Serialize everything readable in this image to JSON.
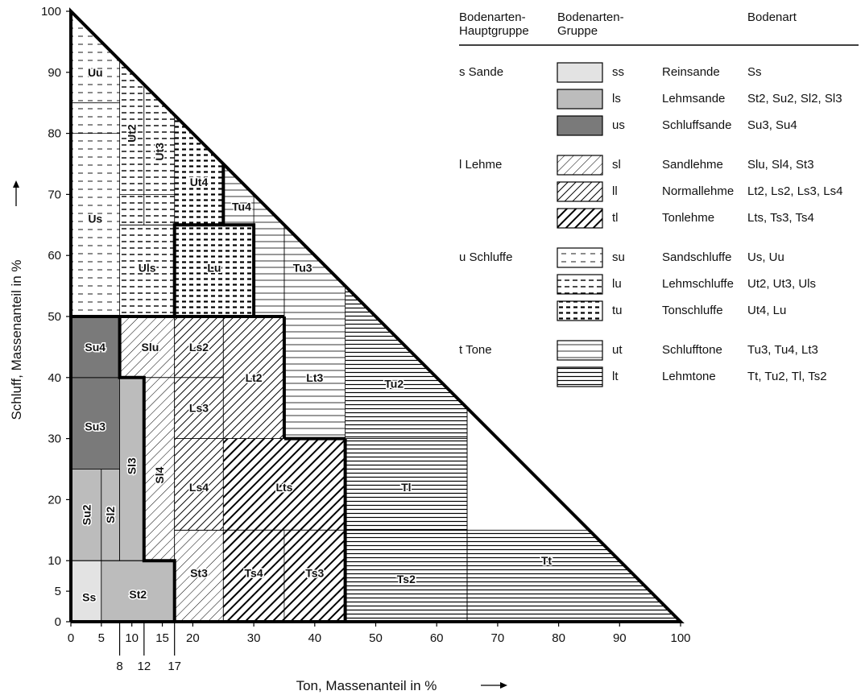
{
  "axes": {
    "x_title": "Ton, Massenanteil in %",
    "y_title": "Schluff, Massenanteil in %",
    "x_ticks": [
      "0",
      "5",
      "10",
      "15",
      "20",
      "30",
      "40",
      "50",
      "60",
      "70",
      "80",
      "90",
      "100"
    ],
    "x_extra_ticks": [
      "8",
      "12",
      "17"
    ],
    "y_ticks": [
      "0",
      "5",
      "10",
      "20",
      "30",
      "40",
      "50",
      "60",
      "70",
      "80",
      "90",
      "100"
    ]
  },
  "legend": {
    "headers": {
      "main_group": "Bodenarten-\nHauptgruppe",
      "group": "Bodenarten-\nGruppe",
      "soil": "Bodenart"
    },
    "sections": [
      {
        "main": "s  Sande",
        "rows": [
          {
            "pattern": "ss",
            "code": "ss",
            "name": "Reinsande",
            "soils": "Ss"
          },
          {
            "pattern": "ls",
            "code": "ls",
            "name": "Lehmsande",
            "soils": "St2, Su2, Sl2, Sl3"
          },
          {
            "pattern": "us",
            "code": "us",
            "name": "Schluffsande",
            "soils": "Su3, Su4"
          }
        ]
      },
      {
        "main": "l  Lehme",
        "rows": [
          {
            "pattern": "sl",
            "code": "sl",
            "name": "Sandlehme",
            "soils": "Slu, Sl4, St3"
          },
          {
            "pattern": "ll",
            "code": "ll",
            "name": "Normallehme",
            "soils": "Lt2, Ls2, Ls3, Ls4"
          },
          {
            "pattern": "tl",
            "code": "tl",
            "name": "Tonlehme",
            "soils": "Lts, Ts3, Ts4"
          }
        ]
      },
      {
        "main": "u  Schluffe",
        "rows": [
          {
            "pattern": "su",
            "code": "su",
            "name": "Sandschluffe",
            "soils": "Us, Uu"
          },
          {
            "pattern": "lu",
            "code": "lu",
            "name": "Lehmschluffe",
            "soils": "Ut2, Ut3, Uls"
          },
          {
            "pattern": "tu",
            "code": "tu",
            "name": "Tonschluffe",
            "soils": "Ut4, Lu"
          }
        ]
      },
      {
        "main": "t  Tone",
        "rows": [
          {
            "pattern": "ut",
            "code": "ut",
            "name": "Schlufftone",
            "soils": "Tu3, Tu4, Lt3"
          },
          {
            "pattern": "lt",
            "code": "lt",
            "name": "Lehmtone",
            "soils": "Tt, Tu2, Tl, Ts2"
          }
        ]
      }
    ]
  },
  "classes": [
    {
      "label": "Ss",
      "group": "ss",
      "poly": [
        [
          0,
          0
        ],
        [
          5,
          0
        ],
        [
          5,
          10
        ],
        [
          0,
          10
        ]
      ],
      "lab": [
        3,
        4
      ]
    },
    {
      "label": "St2",
      "group": "ls",
      "poly": [
        [
          5,
          0
        ],
        [
          17,
          0
        ],
        [
          17,
          10
        ],
        [
          5,
          10
        ]
      ],
      "lab": [
        11,
        4.5
      ]
    },
    {
      "label": "Su2",
      "group": "ls",
      "poly": [
        [
          0,
          10
        ],
        [
          5,
          10
        ],
        [
          5,
          25
        ],
        [
          0,
          25
        ]
      ],
      "lab": [
        2.6,
        17.5
      ],
      "rot": true
    },
    {
      "label": "Sl2",
      "group": "ls",
      "poly": [
        [
          5,
          10
        ],
        [
          8,
          10
        ],
        [
          8,
          25
        ],
        [
          5,
          25
        ]
      ],
      "lab": [
        6.5,
        17.5
      ],
      "rot": true
    },
    {
      "label": "Sl3",
      "group": "ls",
      "poly": [
        [
          8,
          10
        ],
        [
          12,
          10
        ],
        [
          12,
          40
        ],
        [
          8,
          40
        ],
        [
          8,
          25
        ]
      ],
      "lab": [
        10,
        25.5
      ],
      "rot": true
    },
    {
      "label": "Su3",
      "group": "us",
      "poly": [
        [
          0,
          25
        ],
        [
          8,
          25
        ],
        [
          8,
          40
        ],
        [
          0,
          40
        ]
      ],
      "lab": [
        4,
        32
      ]
    },
    {
      "label": "Su4",
      "group": "us",
      "poly": [
        [
          0,
          40
        ],
        [
          8,
          40
        ],
        [
          8,
          50
        ],
        [
          0,
          50
        ]
      ],
      "lab": [
        4,
        45
      ]
    },
    {
      "label": "Slu",
      "group": "sl",
      "poly": [
        [
          8,
          40
        ],
        [
          8,
          50
        ],
        [
          17,
          50
        ],
        [
          17,
          40
        ]
      ],
      "lab": [
        13,
        45
      ]
    },
    {
      "label": "Sl4",
      "group": "sl",
      "poly": [
        [
          12,
          10
        ],
        [
          17,
          10
        ],
        [
          17,
          40
        ],
        [
          12,
          40
        ]
      ],
      "lab": [
        14.5,
        24
      ],
      "rot": true
    },
    {
      "label": "St3",
      "group": "sl",
      "poly": [
        [
          17,
          0
        ],
        [
          25,
          0
        ],
        [
          25,
          15
        ],
        [
          17,
          15
        ]
      ],
      "lab": [
        21,
        8
      ]
    },
    {
      "label": "Ls2",
      "group": "ll",
      "poly": [
        [
          17,
          40
        ],
        [
          25,
          40
        ],
        [
          25,
          50
        ],
        [
          17,
          50
        ]
      ],
      "lab": [
        21,
        45
      ]
    },
    {
      "label": "Ls3",
      "group": "ll",
      "poly": [
        [
          17,
          30
        ],
        [
          25,
          30
        ],
        [
          25,
          40
        ],
        [
          17,
          40
        ]
      ],
      "lab": [
        21,
        35
      ]
    },
    {
      "label": "Ls4",
      "group": "ll",
      "poly": [
        [
          17,
          15
        ],
        [
          25,
          15
        ],
        [
          25,
          30
        ],
        [
          17,
          30
        ]
      ],
      "lab": [
        21,
        22
      ]
    },
    {
      "label": "Lt2",
      "group": "ll",
      "poly": [
        [
          25,
          30
        ],
        [
          35,
          30
        ],
        [
          35,
          50
        ],
        [
          25,
          50
        ]
      ],
      "lab": [
        30,
        40
      ]
    },
    {
      "label": "Lts",
      "group": "tl",
      "poly": [
        [
          25,
          15
        ],
        [
          45,
          15
        ],
        [
          45,
          30
        ],
        [
          25,
          30
        ]
      ],
      "lab": [
        35,
        22
      ]
    },
    {
      "label": "Ts4",
      "group": "tl",
      "poly": [
        [
          25,
          0
        ],
        [
          35,
          0
        ],
        [
          35,
          15
        ],
        [
          25,
          15
        ]
      ],
      "lab": [
        30,
        8
      ]
    },
    {
      "label": "Ts3",
      "group": "tl",
      "poly": [
        [
          35,
          0
        ],
        [
          45,
          0
        ],
        [
          45,
          15
        ],
        [
          35,
          15
        ]
      ],
      "lab": [
        40,
        8
      ]
    },
    {
      "label": "Ts2",
      "group": "lt",
      "poly": [
        [
          45,
          0
        ],
        [
          65,
          0
        ],
        [
          65,
          15
        ],
        [
          45,
          15
        ]
      ],
      "lab": [
        55,
        7
      ]
    },
    {
      "label": "Tt",
      "group": "lt",
      "poly": [
        [
          65,
          0
        ],
        [
          100,
          0
        ],
        [
          85,
          15
        ],
        [
          65,
          15
        ]
      ],
      "lab": [
        78,
        10
      ]
    },
    {
      "label": "Tl",
      "group": "lt",
      "poly": [
        [
          45,
          15
        ],
        [
          65,
          15
        ],
        [
          65,
          30
        ],
        [
          45,
          30
        ]
      ],
      "lab": [
        55,
        22
      ]
    },
    {
      "label": "Tu2",
      "group": "lt",
      "poly": [
        [
          45,
          30
        ],
        [
          65,
          30
        ],
        [
          65,
          35
        ],
        [
          45,
          55
        ]
      ],
      "lab": [
        53,
        39
      ]
    },
    {
      "label": "Lt3",
      "group": "ut",
      "poly": [
        [
          35,
          30
        ],
        [
          45,
          30
        ],
        [
          45,
          55
        ],
        [
          35,
          65
        ],
        [
          35,
          50
        ]
      ],
      "lab": [
        40,
        40
      ]
    },
    {
      "label": "Tu3",
      "group": "ut",
      "poly": [
        [
          30,
          50
        ],
        [
          35,
          50
        ],
        [
          35,
          65
        ],
        [
          30,
          70
        ],
        [
          30,
          65
        ]
      ],
      "lab": [
        38,
        58
      ]
    },
    {
      "label": "Tu4",
      "group": "ut",
      "poly": [
        [
          25,
          65
        ],
        [
          30,
          65
        ],
        [
          30,
          70
        ],
        [
          25,
          75
        ]
      ],
      "lab": [
        28,
        68
      ]
    },
    {
      "label": "Ut4",
      "group": "tu",
      "poly": [
        [
          17,
          65
        ],
        [
          25,
          65
        ],
        [
          25,
          75
        ],
        [
          17,
          83
        ]
      ],
      "lab": [
        21,
        72
      ]
    },
    {
      "label": "Lu",
      "group": "tu",
      "poly": [
        [
          17,
          50
        ],
        [
          30,
          50
        ],
        [
          30,
          65
        ],
        [
          17,
          65
        ]
      ],
      "lab": [
        23.5,
        58
      ]
    },
    {
      "label": "Uls",
      "group": "lu",
      "poly": [
        [
          8,
          50
        ],
        [
          17,
          50
        ],
        [
          17,
          65
        ],
        [
          8,
          65
        ]
      ],
      "lab": [
        12.5,
        58
      ]
    },
    {
      "label": "Ut2",
      "group": "lu",
      "poly": [
        [
          8,
          65
        ],
        [
          12,
          65
        ],
        [
          12,
          88
        ],
        [
          8,
          92
        ]
      ],
      "lab": [
        10,
        80
      ],
      "rot": true
    },
    {
      "label": "Ut3",
      "group": "lu",
      "poly": [
        [
          12,
          65
        ],
        [
          17,
          65
        ],
        [
          17,
          83
        ],
        [
          12,
          88
        ]
      ],
      "lab": [
        14.5,
        77
      ],
      "rot": true
    },
    {
      "label": "Us",
      "group": "su",
      "poly": [
        [
          0,
          50
        ],
        [
          8,
          50
        ],
        [
          8,
          80
        ],
        [
          0,
          80
        ]
      ],
      "lab": [
        4,
        66
      ]
    },
    {
      "label": "Uu",
      "group": "su",
      "poly": [
        [
          0,
          80
        ],
        [
          8,
          80
        ],
        [
          8,
          92
        ],
        [
          0,
          100
        ]
      ],
      "lab": [
        4,
        90
      ]
    }
  ],
  "extra_lines": [
    [
      [
        45,
        15
      ],
      [
        45,
        30
      ]
    ],
    [
      [
        65,
        0
      ],
      [
        65,
        35
      ]
    ],
    [
      [
        45,
        15
      ],
      [
        65,
        15
      ]
    ],
    [
      [
        45,
        30
      ],
      [
        65,
        30
      ]
    ],
    [
      [
        0,
        10
      ],
      [
        17,
        10
      ]
    ],
    [
      [
        0,
        85
      ],
      [
        8,
        85
      ]
    ],
    [
      [
        8,
        70
      ],
      [
        17,
        70
      ]
    ]
  ],
  "group_boundaries": [
    [
      [
        0,
        50
      ],
      [
        35,
        50
      ]
    ],
    [
      [
        35,
        50
      ],
      [
        35,
        30
      ]
    ],
    [
      [
        35,
        30
      ],
      [
        45,
        30
      ]
    ],
    [
      [
        45,
        30
      ],
      [
        45,
        0
      ]
    ],
    [
      [
        8,
        50
      ],
      [
        8,
        40
      ],
      [
        12,
        40
      ],
      [
        12,
        10
      ],
      [
        17,
        10
      ],
      [
        17,
        0
      ]
    ],
    [
      [
        17,
        50
      ],
      [
        17,
        65
      ],
      [
        25,
        65
      ],
      [
        25,
        75
      ]
    ],
    [
      [
        25,
        65
      ],
      [
        30,
        65
      ],
      [
        30,
        50
      ]
    ],
    [
      [
        0,
        0
      ],
      [
        100,
        0
      ],
      [
        0,
        100
      ],
      [
        0,
        0
      ]
    ]
  ],
  "colors": {
    "ss_fill": "#e3e3e3",
    "ls_fill": "#bcbcbc",
    "us_fill": "#7a7a7a",
    "stroke": "#000000"
  }
}
